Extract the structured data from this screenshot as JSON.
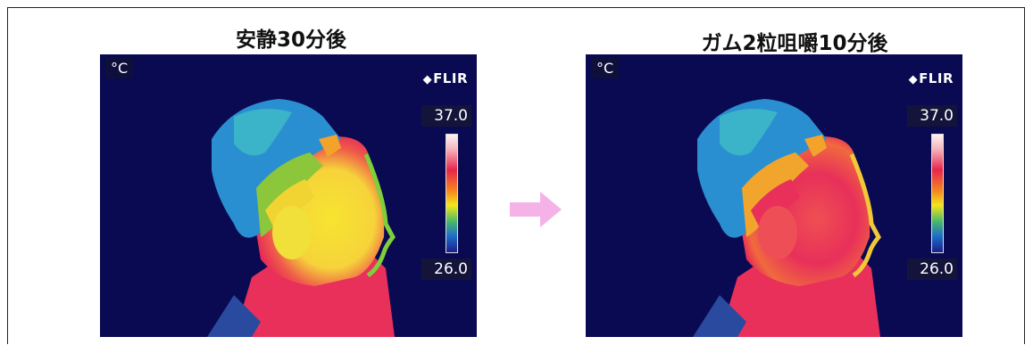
{
  "panels": [
    {
      "title": "安静30分後",
      "unit": "°C",
      "logo": "FLIR",
      "scale_max": "37.0",
      "scale_min": "26.0"
    },
    {
      "title": "ガム2粒咀嚼10分後",
      "unit": "°C",
      "logo": "FLIR",
      "scale_max": "37.0",
      "scale_min": "26.0"
    }
  ],
  "colors": {
    "background": "#0a0a52",
    "arrow": "#f4b2e6",
    "scale_top": "#fdf1f1",
    "scale_bottom": "#1a1f8a"
  }
}
